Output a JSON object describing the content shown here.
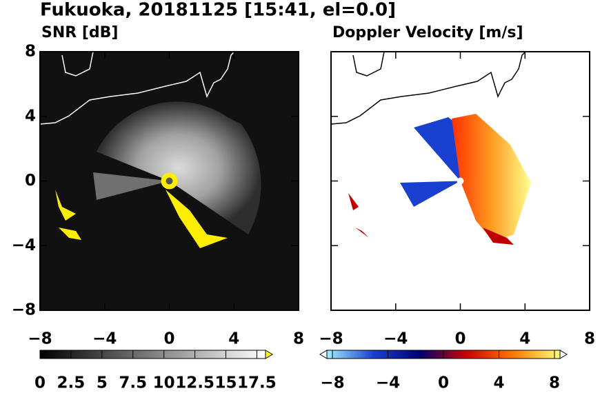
{
  "title": "Fukuoka, 20181125 [15:41, el=0.0]",
  "chart_data": [
    {
      "type": "heatmap",
      "title": "SNR [dB]",
      "xlim": [
        -8,
        8
      ],
      "ylim": [
        -8,
        8
      ],
      "xticks": [
        {
          "value": -8,
          "label": "−8"
        },
        {
          "value": -4,
          "label": "−4"
        },
        0,
        4,
        8
      ],
      "yticks": [
        {
          "value": -8,
          "label": "−8"
        },
        {
          "value": -4,
          "label": "−4"
        },
        0,
        4,
        8
      ],
      "colorbar": {
        "lim": [
          0,
          18.2
        ],
        "ticks": [
          0,
          2.5,
          5,
          7.5,
          10,
          12.5,
          15,
          17.5
        ],
        "colors": [
          "#000000",
          "#ffffff"
        ],
        "extend_color": "#ffff00"
      }
    },
    {
      "type": "heatmap",
      "title": "Doppler Velocity [m/s]",
      "xlim": [
        -8,
        8
      ],
      "ylim": [
        -8,
        8
      ],
      "xticks": [
        {
          "value": -8,
          "label": "−8"
        },
        {
          "value": -4,
          "label": "−4"
        },
        0,
        4,
        8
      ],
      "yticks": [
        {
          "value": -8,
          "label": "−8"
        },
        {
          "value": -4,
          "label": "−4"
        },
        0,
        4,
        8
      ],
      "colorbar": {
        "lim": [
          -8.4,
          8.4
        ],
        "ticks": [
          {
            "value": -8,
            "label": "−8"
          },
          {
            "value": -4,
            "label": "−4"
          },
          0,
          4,
          8
        ],
        "colors": [
          "#a0f0ff",
          "#1a40d0",
          "#000070",
          "#d00000",
          "#ff7a00",
          "#ffff80"
        ],
        "extend_color": "#ffffff"
      }
    }
  ]
}
